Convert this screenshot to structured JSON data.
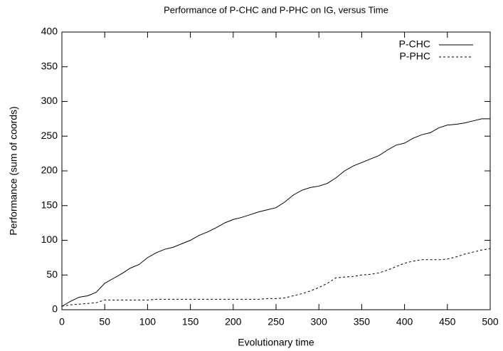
{
  "chart_data": {
    "type": "line",
    "title": "Performance of P-CHC and P-PHC on IG, versus Time",
    "x_label": "Evolutionary time",
    "y_label": "Performance (sum of coords)",
    "x": [
      0,
      10,
      20,
      30,
      40,
      50,
      60,
      70,
      80,
      90,
      100,
      110,
      120,
      130,
      140,
      150,
      160,
      170,
      180,
      190,
      200,
      210,
      220,
      230,
      240,
      250,
      260,
      270,
      280,
      290,
      300,
      310,
      320,
      330,
      340,
      350,
      360,
      370,
      380,
      390,
      400,
      410,
      420,
      430,
      440,
      450,
      460,
      470,
      480,
      490,
      500
    ],
    "series": [
      {
        "name": "P-CHC",
        "color": "#000000",
        "line_style": "solid",
        "values": [
          5,
          12,
          18,
          20,
          25,
          38,
          45,
          52,
          60,
          65,
          75,
          82,
          87,
          90,
          95,
          100,
          107,
          112,
          118,
          125,
          130,
          133,
          137,
          141,
          144,
          147,
          155,
          165,
          172,
          176,
          178,
          182,
          190,
          200,
          207,
          212,
          217,
          222,
          230,
          237,
          240,
          247,
          252,
          255,
          262,
          266,
          267,
          269,
          272,
          275,
          275
        ]
      },
      {
        "name": "P-PHC",
        "color": "#000000",
        "line_style": "dashed",
        "values": [
          5,
          7,
          8,
          9,
          10,
          14,
          14,
          14,
          14,
          14,
          14,
          15,
          15,
          15,
          15,
          15,
          15,
          15,
          15,
          15,
          15,
          15,
          15,
          15,
          16,
          16,
          17,
          20,
          23,
          27,
          32,
          38,
          46,
          47,
          48,
          50,
          51,
          53,
          57,
          62,
          67,
          70,
          72,
          72,
          72,
          73,
          76,
          80,
          83,
          86,
          88
        ]
      }
    ],
    "xlim": [
      0,
      500
    ],
    "xticks": [
      0,
      50,
      100,
      150,
      200,
      250,
      300,
      350,
      400,
      450,
      500
    ],
    "ylim": [
      0,
      400
    ],
    "yticks": [
      0,
      50,
      100,
      150,
      200,
      250,
      300,
      350,
      400
    ],
    "legend": "top right"
  }
}
